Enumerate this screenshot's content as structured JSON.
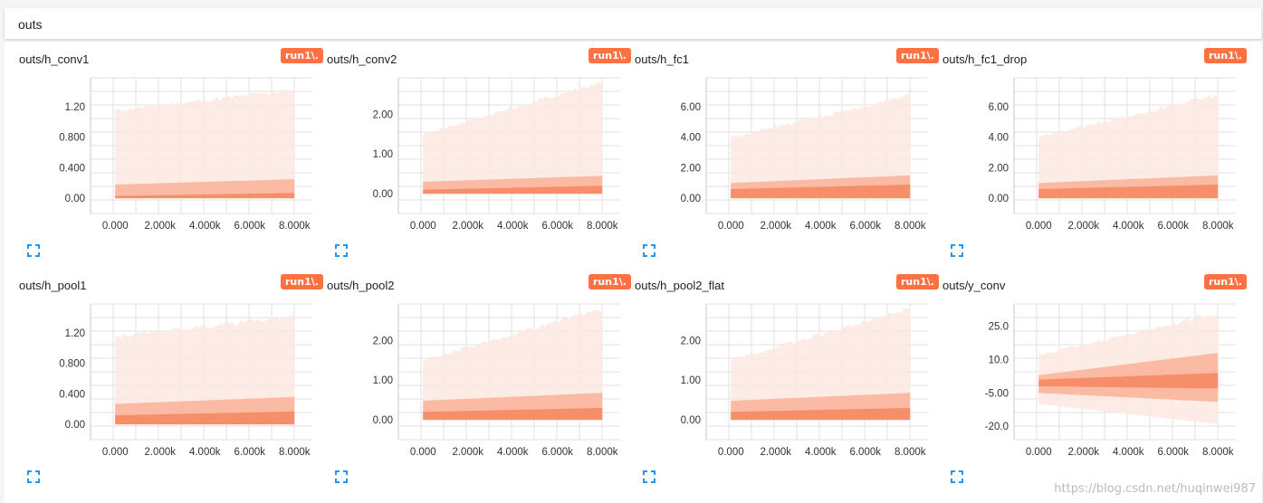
{
  "header": {
    "title": "outs"
  },
  "run_label": "run1\\.",
  "watermark": "https://blog.csdn.net/huqinwei987",
  "colors": {
    "accent": "#ff7043",
    "area_light": "#fde8e0",
    "area_mid": "#fbb59c",
    "area_dark": "#f58a63"
  },
  "chart_data": [
    {
      "type": "area",
      "title": "outs/h_conv1",
      "x_ticks": [
        "0.000",
        "2.000k",
        "4.000k",
        "6.000k",
        "8.000k"
      ],
      "xlim": [
        -1100,
        9000
      ],
      "y_ticks": [
        "0.00",
        "0.400",
        "0.800",
        "1.20"
      ],
      "y_tick_values": [
        0,
        0.4,
        0.8,
        1.2
      ],
      "ylim": [
        -0.2,
        1.58
      ],
      "bands": [
        {
          "x": [
            0,
            8000
          ],
          "lower": [
            0.0,
            0.0
          ],
          "upper": [
            1.15,
            1.42
          ]
        },
        {
          "x": [
            0,
            8000
          ],
          "lower": [
            0.0,
            0.0
          ],
          "upper": [
            0.18,
            0.25
          ]
        },
        {
          "x": [
            0,
            8000
          ],
          "lower": [
            0.0,
            0.0
          ],
          "upper": [
            0.03,
            0.07
          ]
        }
      ]
    },
    {
      "type": "area",
      "title": "outs/h_conv2",
      "x_ticks": [
        "0.000",
        "2.000k",
        "4.000k",
        "6.000k",
        "8.000k"
      ],
      "xlim": [
        -1100,
        9000
      ],
      "y_ticks": [
        "0.00",
        "1.00",
        "2.00"
      ],
      "y_tick_values": [
        0,
        1,
        2
      ],
      "ylim": [
        -0.5,
        2.92
      ],
      "bands": [
        {
          "x": [
            0,
            8000
          ],
          "lower": [
            0.0,
            0.0
          ],
          "upper": [
            1.5,
            2.82
          ]
        },
        {
          "x": [
            0,
            8000
          ],
          "lower": [
            0.0,
            0.0
          ],
          "upper": [
            0.3,
            0.45
          ]
        },
        {
          "x": [
            0,
            8000
          ],
          "lower": [
            0.0,
            0.0
          ],
          "upper": [
            0.1,
            0.2
          ]
        }
      ]
    },
    {
      "type": "area",
      "title": "outs/h_fc1",
      "x_ticks": [
        "0.000",
        "2.000k",
        "4.000k",
        "6.000k",
        "8.000k"
      ],
      "xlim": [
        -1100,
        9000
      ],
      "y_ticks": [
        "0.00",
        "2.00",
        "4.00",
        "6.00"
      ],
      "y_tick_values": [
        0,
        2,
        4,
        6
      ],
      "ylim": [
        -1.0,
        7.9
      ],
      "bands": [
        {
          "x": [
            0,
            8000
          ],
          "lower": [
            0.0,
            0.0
          ],
          "upper": [
            4.0,
            6.7
          ]
        },
        {
          "x": [
            0,
            8000
          ],
          "lower": [
            0.0,
            0.0
          ],
          "upper": [
            1.0,
            1.5
          ]
        },
        {
          "x": [
            0,
            8000
          ],
          "lower": [
            0.0,
            0.0
          ],
          "upper": [
            0.6,
            0.9
          ]
        }
      ]
    },
    {
      "type": "area",
      "title": "outs/h_fc1_drop",
      "x_ticks": [
        "0.000",
        "2.000k",
        "4.000k",
        "6.000k",
        "8.000k"
      ],
      "xlim": [
        -1100,
        9000
      ],
      "y_ticks": [
        "0.00",
        "2.00",
        "4.00",
        "6.00"
      ],
      "y_tick_values": [
        0,
        2,
        4,
        6
      ],
      "ylim": [
        -1.0,
        7.9
      ],
      "bands": [
        {
          "x": [
            0,
            8000
          ],
          "lower": [
            0.0,
            0.0
          ],
          "upper": [
            4.0,
            6.8
          ]
        },
        {
          "x": [
            0,
            8000
          ],
          "lower": [
            0.0,
            0.0
          ],
          "upper": [
            1.0,
            1.5
          ]
        },
        {
          "x": [
            0,
            8000
          ],
          "lower": [
            0.0,
            0.0
          ],
          "upper": [
            0.6,
            0.9
          ]
        }
      ]
    },
    {
      "type": "area",
      "title": "outs/h_pool1",
      "x_ticks": [
        "0.000",
        "2.000k",
        "4.000k",
        "6.000k",
        "8.000k"
      ],
      "xlim": [
        -1100,
        9000
      ],
      "y_ticks": [
        "0.00",
        "0.400",
        "0.800",
        "1.20"
      ],
      "y_tick_values": [
        0,
        0.4,
        0.8,
        1.2
      ],
      "ylim": [
        -0.2,
        1.58
      ],
      "bands": [
        {
          "x": [
            0,
            8000
          ],
          "lower": [
            0.0,
            0.0
          ],
          "upper": [
            1.15,
            1.42
          ]
        },
        {
          "x": [
            0,
            8000
          ],
          "lower": [
            0.0,
            0.0
          ],
          "upper": [
            0.27,
            0.36
          ]
        },
        {
          "x": [
            0,
            8000
          ],
          "lower": [
            0.0,
            0.0
          ],
          "upper": [
            0.12,
            0.17
          ]
        }
      ]
    },
    {
      "type": "area",
      "title": "outs/h_pool2",
      "x_ticks": [
        "0.000",
        "2.000k",
        "4.000k",
        "6.000k",
        "8.000k"
      ],
      "xlim": [
        -1100,
        9000
      ],
      "y_ticks": [
        "0.00",
        "1.00",
        "2.00"
      ],
      "y_tick_values": [
        0,
        1,
        2
      ],
      "ylim": [
        -0.5,
        2.92
      ],
      "bands": [
        {
          "x": [
            0,
            8000
          ],
          "lower": [
            0.0,
            0.0
          ],
          "upper": [
            1.5,
            2.8
          ]
        },
        {
          "x": [
            0,
            8000
          ],
          "lower": [
            0.0,
            0.0
          ],
          "upper": [
            0.48,
            0.68
          ]
        },
        {
          "x": [
            0,
            8000
          ],
          "lower": [
            0.0,
            0.0
          ],
          "upper": [
            0.2,
            0.3
          ]
        }
      ]
    },
    {
      "type": "area",
      "title": "outs/h_pool2_flat",
      "x_ticks": [
        "0.000",
        "2.000k",
        "4.000k",
        "6.000k",
        "8.000k"
      ],
      "xlim": [
        -1100,
        9000
      ],
      "y_ticks": [
        "0.00",
        "1.00",
        "2.00"
      ],
      "y_tick_values": [
        0,
        1,
        2
      ],
      "ylim": [
        -0.5,
        2.92
      ],
      "bands": [
        {
          "x": [
            0,
            8000
          ],
          "lower": [
            0.0,
            0.0
          ],
          "upper": [
            1.5,
            2.8
          ]
        },
        {
          "x": [
            0,
            8000
          ],
          "lower": [
            0.0,
            0.0
          ],
          "upper": [
            0.48,
            0.68
          ]
        },
        {
          "x": [
            0,
            8000
          ],
          "lower": [
            0.0,
            0.0
          ],
          "upper": [
            0.2,
            0.3
          ]
        }
      ]
    },
    {
      "type": "area",
      "title": "outs/y_conv",
      "x_ticks": [
        "0.000",
        "2.000k",
        "4.000k",
        "6.000k",
        "8.000k"
      ],
      "xlim": [
        -1100,
        9000
      ],
      "y_ticks": [
        "-20.0",
        "-5.00",
        "10.0",
        "25.0"
      ],
      "y_tick_values": [
        -20,
        -5,
        10,
        25
      ],
      "ylim": [
        -26,
        35
      ],
      "bands": [
        {
          "x": [
            0,
            8000
          ],
          "lower": [
            -10,
            -19
          ],
          "upper": [
            12,
            31
          ]
        },
        {
          "x": [
            0,
            8000
          ],
          "lower": [
            -5,
            -9
          ],
          "upper": [
            3,
            13
          ]
        },
        {
          "x": [
            0,
            8000
          ],
          "lower": [
            -2,
            -3
          ],
          "upper": [
            1,
            4
          ]
        }
      ]
    }
  ]
}
